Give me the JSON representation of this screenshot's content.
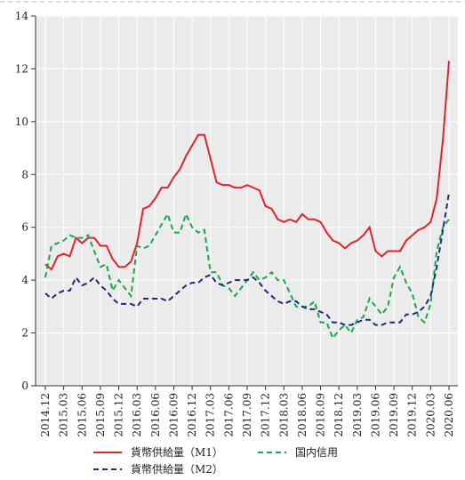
{
  "chart_data": {
    "type": "line",
    "categories": [
      "2014.12",
      null,
      null,
      "2015.03",
      null,
      null,
      "2015.06",
      null,
      null,
      "2015.09",
      null,
      null,
      "2015.12",
      null,
      null,
      "2016.03",
      null,
      null,
      "2016.06",
      null,
      null,
      "2016.09",
      null,
      null,
      "2016.12",
      null,
      null,
      "2017.03",
      null,
      null,
      "2017.06",
      null,
      null,
      "2017.09",
      null,
      null,
      "2017.12",
      null,
      null,
      "2018.03",
      null,
      null,
      "2018.06",
      null,
      null,
      "2018.09",
      null,
      null,
      "2018.12",
      null,
      null,
      "2019.03",
      null,
      null,
      "2019.06",
      null,
      null,
      "2019.09",
      null,
      null,
      "2019.12",
      null,
      null,
      "2020.03",
      null,
      null,
      "2020.06"
    ],
    "series": [
      {
        "name": "貨幣供給量（M1）",
        "color": "#e3232c",
        "linestyle": "solid",
        "values": [
          4.6,
          4.4,
          4.9,
          5.0,
          4.9,
          5.6,
          5.4,
          5.6,
          5.6,
          5.3,
          5.3,
          4.8,
          4.5,
          4.5,
          4.7,
          5.4,
          6.7,
          6.8,
          7.1,
          7.5,
          7.5,
          7.9,
          8.2,
          8.7,
          9.1,
          9.5,
          9.5,
          8.6,
          7.7,
          7.6,
          7.6,
          7.5,
          7.5,
          7.6,
          7.5,
          7.4,
          6.8,
          6.7,
          6.3,
          6.2,
          6.3,
          6.2,
          6.5,
          6.3,
          6.3,
          6.2,
          5.8,
          5.5,
          5.4,
          5.2,
          5.4,
          5.5,
          5.7,
          6.0,
          5.1,
          4.9,
          5.1,
          5.1,
          5.1,
          5.5,
          5.7,
          5.9,
          6.0,
          6.2,
          7.1,
          9.3,
          12.3
        ]
      },
      {
        "name": "国内信用",
        "color": "#1aa64a",
        "linestyle": "dashed",
        "values": [
          4.1,
          5.3,
          5.4,
          5.5,
          5.7,
          5.6,
          5.6,
          5.7,
          5.1,
          4.5,
          4.6,
          3.6,
          4.0,
          3.7,
          3.4,
          5.3,
          5.2,
          5.3,
          5.7,
          6.1,
          6.5,
          5.8,
          5.8,
          6.5,
          6.0,
          5.8,
          5.9,
          4.3,
          4.3,
          3.8,
          3.7,
          3.4,
          3.7,
          4.0,
          4.3,
          4.0,
          4.1,
          4.3,
          4.0,
          4.0,
          3.5,
          3.0,
          3.0,
          3.0,
          3.2,
          2.4,
          2.4,
          1.8,
          2.1,
          2.3,
          2.0,
          2.5,
          2.6,
          3.3,
          3.0,
          2.7,
          3.0,
          4.1,
          4.5,
          3.9,
          3.5,
          2.6,
          2.4,
          3.1,
          5.1,
          6.0,
          6.3
        ]
      },
      {
        "name": "貨幣供給量（M2）",
        "color": "#1f2a7a",
        "linestyle": "dashed",
        "values": [
          3.5,
          3.3,
          3.5,
          3.6,
          3.6,
          4.1,
          3.8,
          3.9,
          4.1,
          3.8,
          3.6,
          3.3,
          3.1,
          3.1,
          3.1,
          3.0,
          3.3,
          3.3,
          3.3,
          3.3,
          3.2,
          3.4,
          3.6,
          3.8,
          3.9,
          3.9,
          4.1,
          4.2,
          3.9,
          3.8,
          3.9,
          4.0,
          4.0,
          4.0,
          4.1,
          3.9,
          3.6,
          3.4,
          3.2,
          3.1,
          3.2,
          3.2,
          3.0,
          2.9,
          2.9,
          2.8,
          2.7,
          2.4,
          2.4,
          2.3,
          2.3,
          2.4,
          2.5,
          2.5,
          2.3,
          2.3,
          2.4,
          2.4,
          2.4,
          2.7,
          2.7,
          2.8,
          3.0,
          3.4,
          4.5,
          5.9,
          7.3
        ]
      }
    ],
    "ylim": [
      0,
      14
    ],
    "yticks": [
      0,
      2,
      4,
      6,
      8,
      10,
      12,
      14
    ],
    "grid": true
  }
}
